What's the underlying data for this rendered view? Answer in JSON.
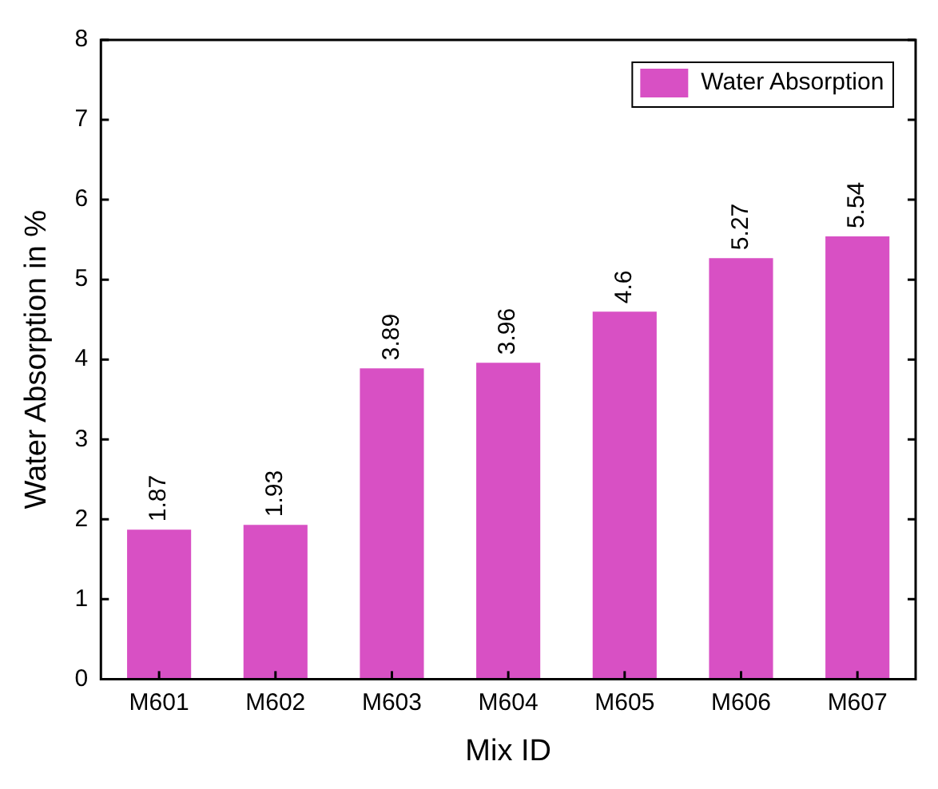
{
  "chart_data": {
    "type": "bar",
    "xlabel": "Mix ID",
    "ylabel": "Water Absorption in %",
    "categories": [
      "M601",
      "M602",
      "M603",
      "M604",
      "M605",
      "M606",
      "M607"
    ],
    "series": [
      {
        "name": "Water Absorption",
        "color": "#d850c4",
        "values": [
          1.87,
          1.93,
          3.89,
          3.96,
          4.6,
          5.27,
          5.54
        ]
      }
    ],
    "ylim": [
      0,
      8
    ],
    "yticks": [
      0,
      1,
      2,
      3,
      4,
      5,
      6,
      7,
      8
    ],
    "grid": false,
    "legend": "top right",
    "data_labels": true
  }
}
